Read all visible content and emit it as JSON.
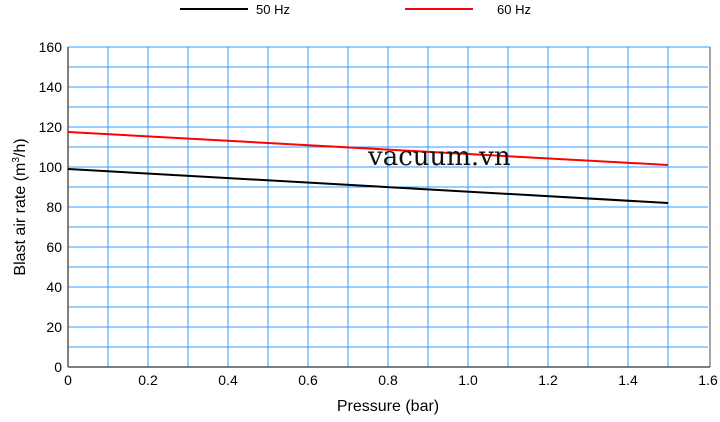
{
  "chart_data": {
    "type": "line",
    "title": "",
    "xlabel": "Pressure (bar)",
    "ylabel_main": "Blast air rate (m",
    "ylabel_sup": "3",
    "ylabel_tail": "/h)",
    "xlim": [
      0,
      1.6
    ],
    "ylim": [
      0,
      160
    ],
    "xticks": [
      "0",
      "0.2",
      "0.4",
      "0.6",
      "0.8",
      "1.0",
      "1.2",
      "1.4",
      "1.6"
    ],
    "yticks": [
      "0",
      "20",
      "40",
      "60",
      "80",
      "100",
      "120",
      "140",
      "160"
    ],
    "grid": true,
    "legend_placement": "top",
    "series": [
      {
        "name": "50 Hz",
        "color": "#000000",
        "x": [
          0,
          1.5
        ],
        "y": [
          99,
          82
        ]
      },
      {
        "name": "60 Hz",
        "color": "#ff0000",
        "x": [
          0,
          1.5
        ],
        "y": [
          117.5,
          101
        ]
      }
    ],
    "watermark": "vacuum.vn",
    "grid_color": "#3399ff"
  }
}
